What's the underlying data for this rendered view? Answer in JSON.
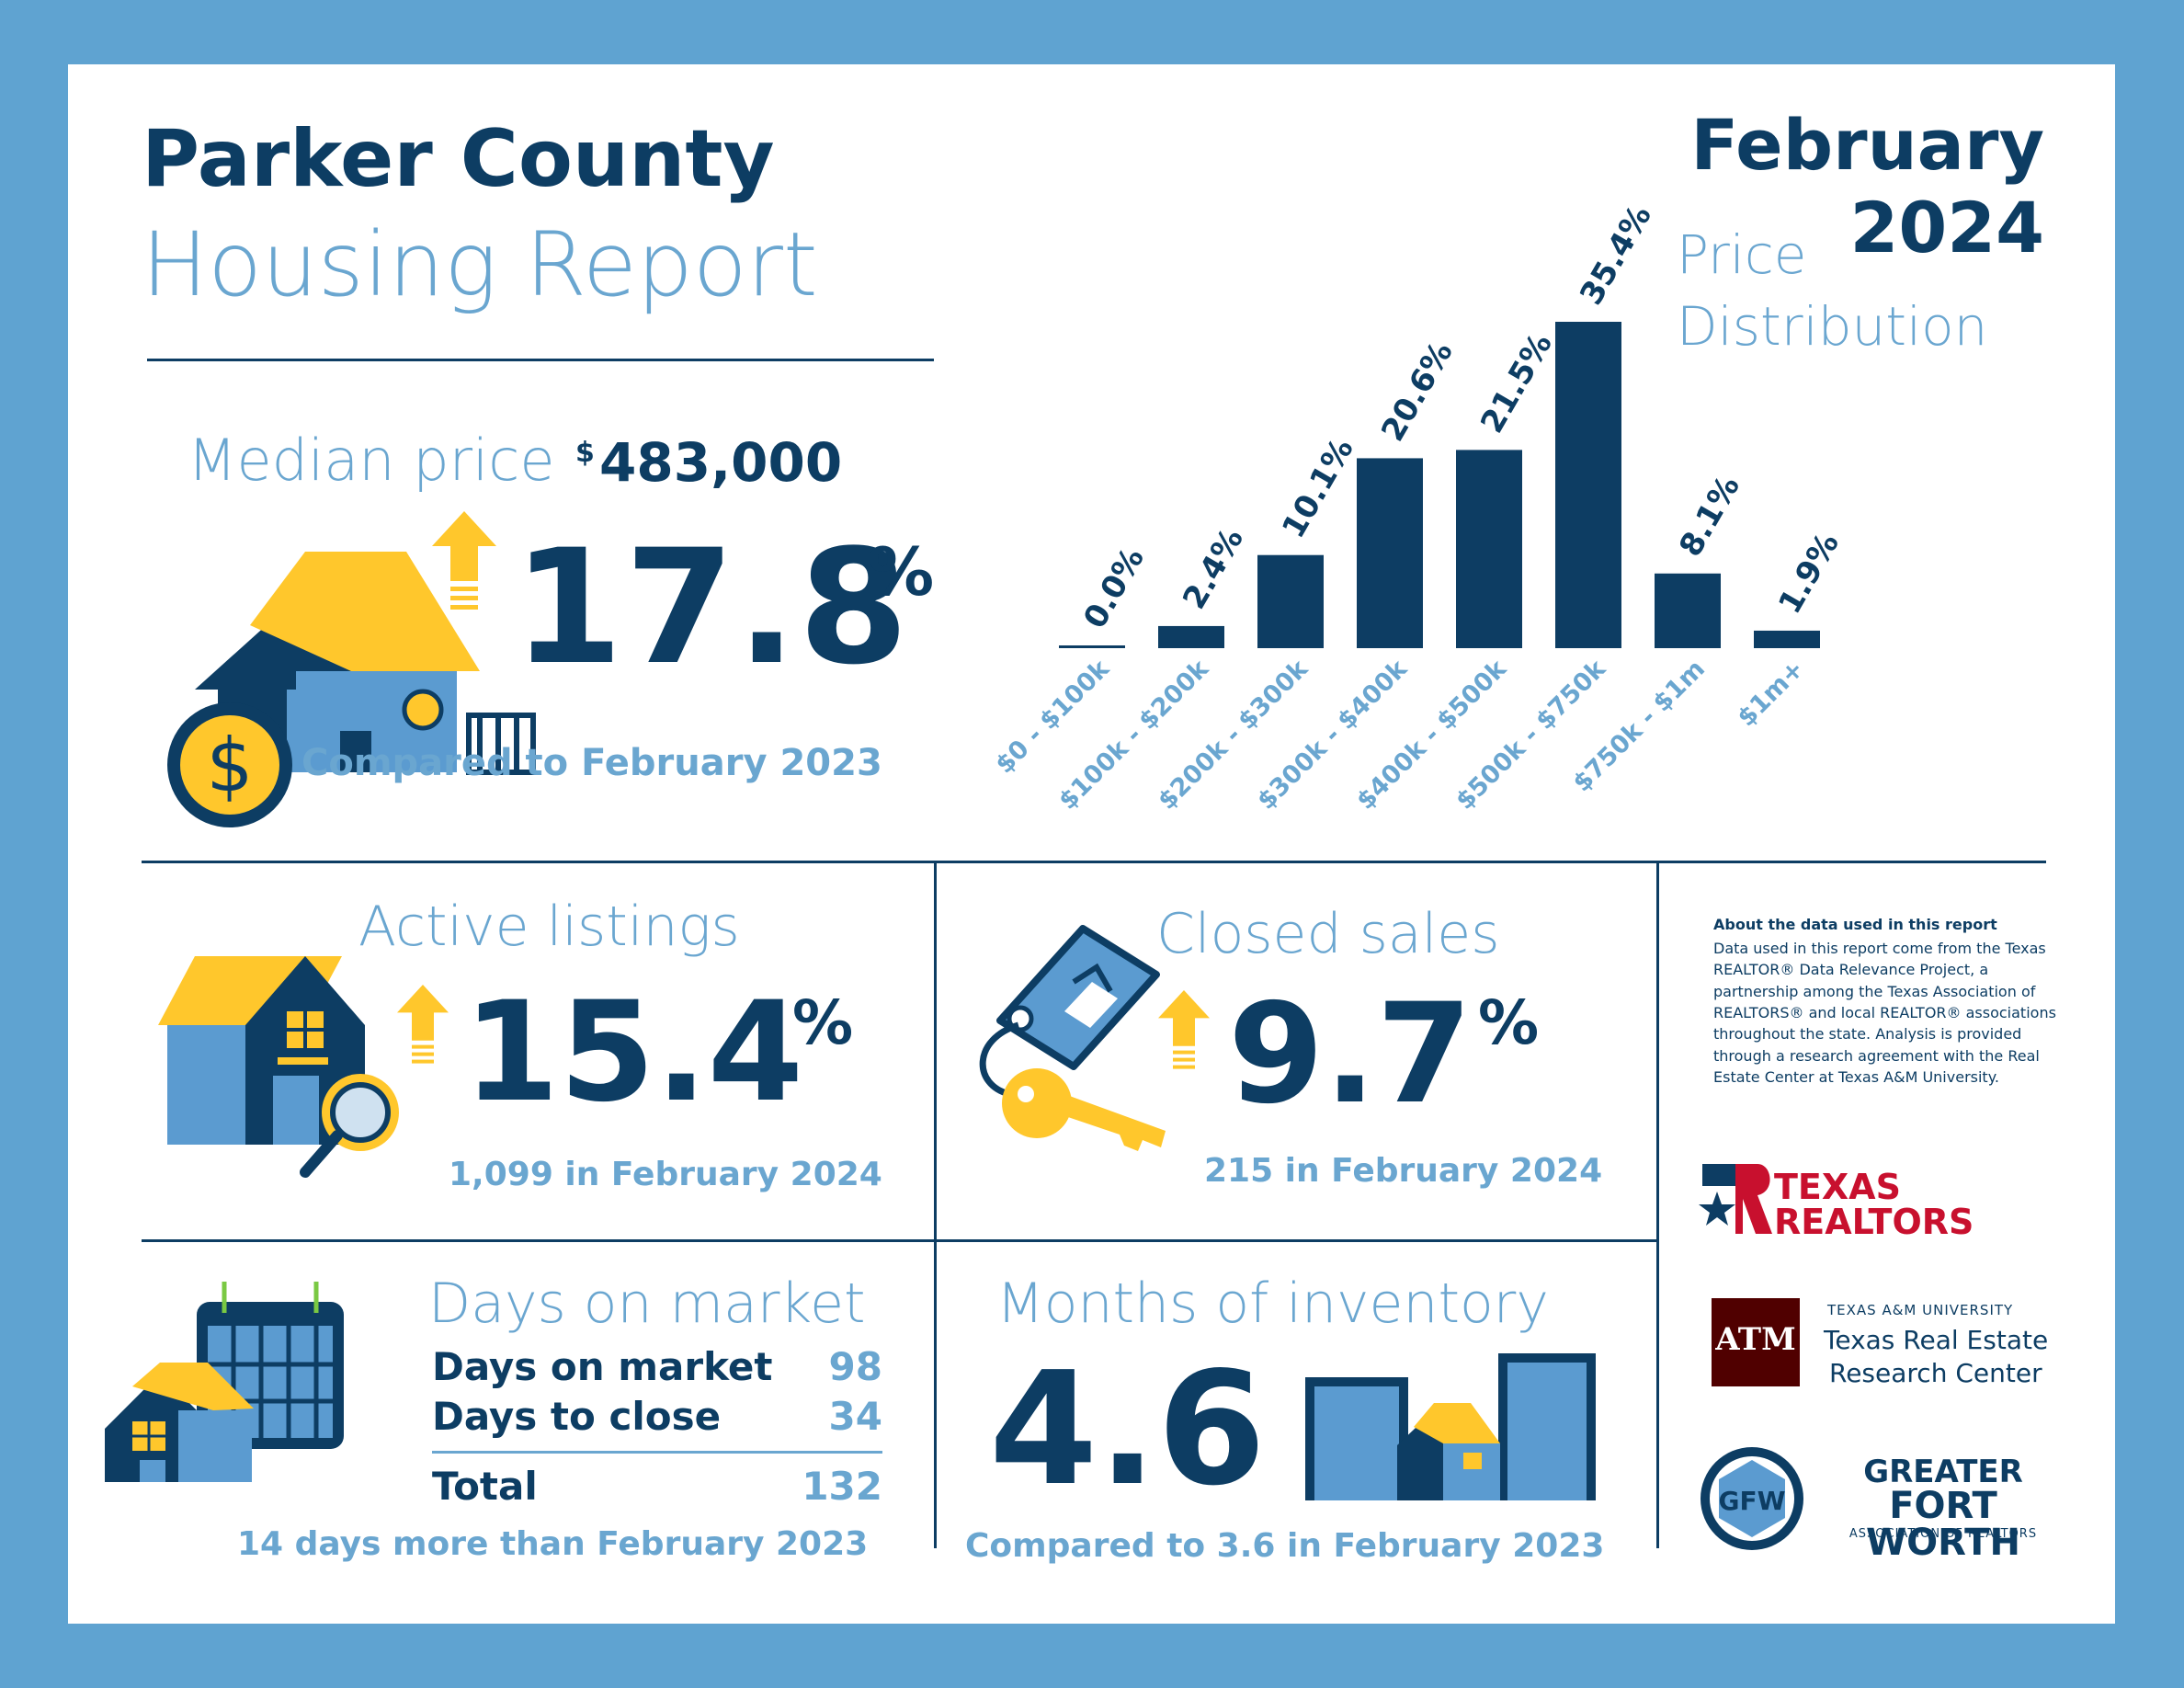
{
  "header": {
    "title_line1": "Parker County",
    "title_line2": "Housing Report",
    "month": "February",
    "year": "2024"
  },
  "price_distribution": {
    "title_line1": "Price",
    "title_line2": "Distribution"
  },
  "chart_data": {
    "type": "bar",
    "title": "Price Distribution",
    "categories": [
      "$0 - $100k",
      "$100k - $200k",
      "$200k - $300k",
      "$300k - $400k",
      "$400k - $500k",
      "$500k - $750k",
      "$750k - $1m",
      "$1m+"
    ],
    "values": [
      0.0,
      2.4,
      10.1,
      20.6,
      21.5,
      35.4,
      8.1,
      1.9
    ],
    "value_labels": [
      "0.0%",
      "2.4%",
      "10.1%",
      "20.6%",
      "21.5%",
      "35.4%",
      "8.1%",
      "1.9%"
    ],
    "ylim": [
      0,
      35.4
    ],
    "grid": false,
    "bar_color": "#0d3d63"
  },
  "median": {
    "label": "Median price",
    "price_symbol": "$",
    "price": "483,000",
    "change": "17.8",
    "unit": "%",
    "direction": "up",
    "note": "Compared to February 2023"
  },
  "active": {
    "label": "Active listings",
    "change": "15.4",
    "unit": "%",
    "direction": "up",
    "note": "1,099 in February 2024"
  },
  "closed": {
    "label": "Closed sales",
    "change": "9.7",
    "unit": "%",
    "direction": "up",
    "note": "215 in February 2024"
  },
  "dom": {
    "title": "Days on market",
    "rows": [
      {
        "label": "Days on market",
        "value": "98"
      },
      {
        "label": "Days to close",
        "value": "34"
      }
    ],
    "total_label": "Total",
    "total_value": "132",
    "note": "14 days more than February 2023"
  },
  "inventory": {
    "title": "Months of inventory",
    "value": "4.6",
    "note": "Compared to 3.6 in February 2023"
  },
  "about": {
    "heading": "About the data used in this report",
    "body": "Data used in this report come from the Texas REALTOR® Data Relevance Project, a partnership among the Texas Association of REALTORS® and local REALTOR® associations throughout the state. Analysis is provided through a research agreement with the Real Estate Center at Texas A&M University."
  },
  "logos": {
    "texas_realtors": {
      "line1": "TEXAS",
      "line2": "REALTORS",
      "mark": "R"
    },
    "tamu": {
      "mark": "ATM",
      "line1": "TEXAS A&M UNIVERSITY",
      "line2": "Texas Real Estate",
      "line3": "Research Center"
    },
    "gfw": {
      "mark": "GFW",
      "line1": "GREATER",
      "line2": "FORT WORTH",
      "line3": "ASSOCIATION OF REALTORS"
    }
  },
  "colors": {
    "navy": "#0d3d63",
    "light_blue": "#6aa6d0",
    "yellow": "#ffc72c",
    "house_blue": "#5b9bd0",
    "border": "#5fa3d1"
  }
}
